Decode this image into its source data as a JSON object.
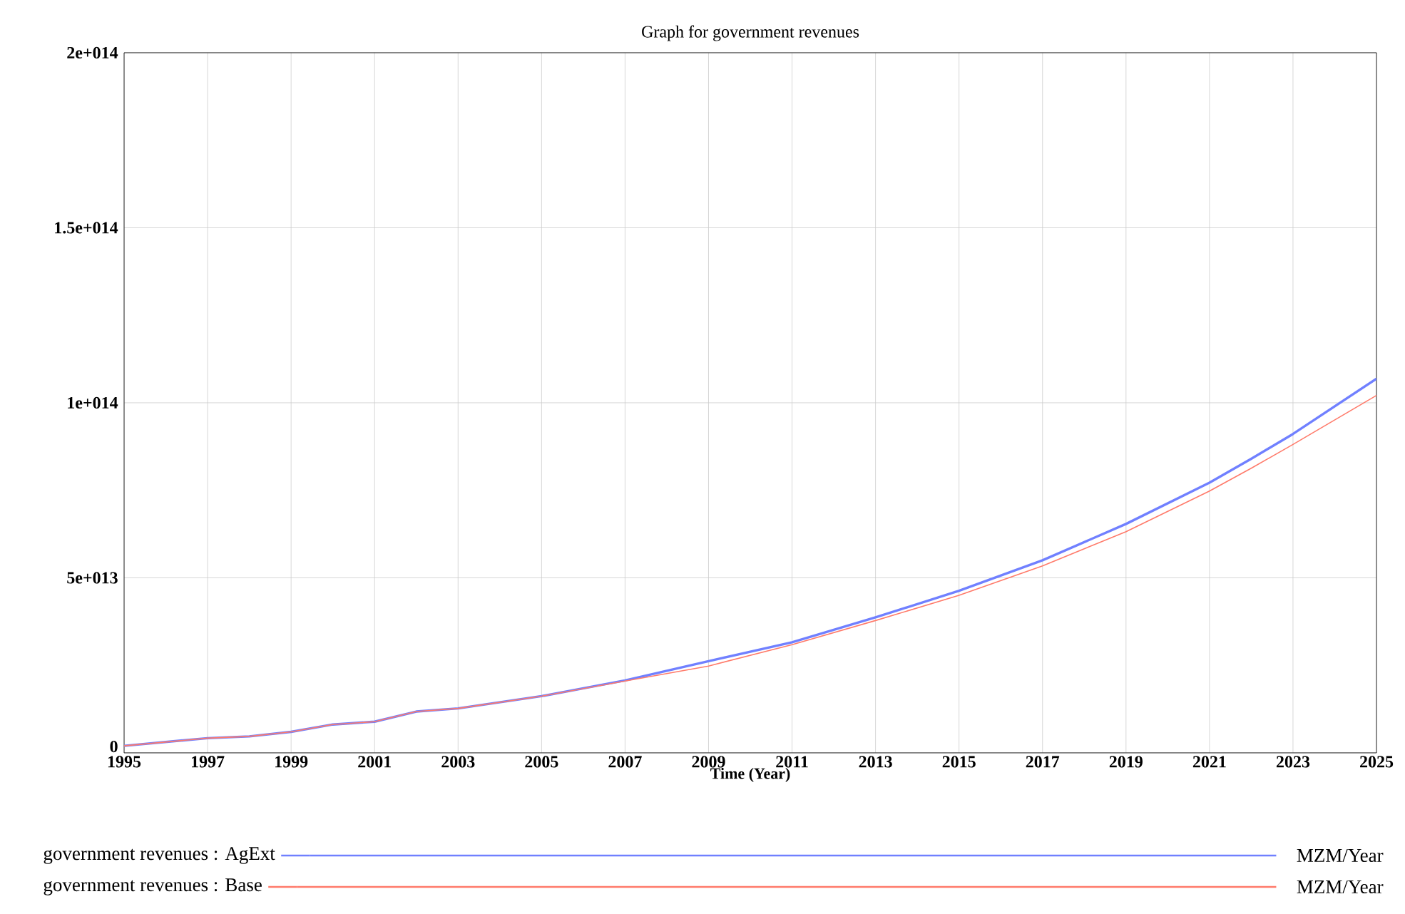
{
  "chart_data": {
    "type": "line",
    "title": "Graph for government revenues",
    "xlabel": "Time (Year)",
    "x": [
      1995,
      1997,
      1998,
      1999,
      2000,
      2001,
      2002,
      2003,
      2005,
      2007,
      2009,
      2011,
      2013,
      2015,
      2017,
      2019,
      2021,
      2022,
      2023,
      2025
    ],
    "series": [
      {
        "name": "government revenues : AgExt",
        "color": "#7080ff",
        "values": [
          2000000000000.0,
          4200000000000.0,
          4700000000000.0,
          6000000000000.0,
          8100000000000.0,
          8900000000000.0,
          11800000000000.0,
          12700000000000.0,
          16200000000000.0,
          20700000000000.0,
          26200000000000.0,
          31600000000000.0,
          38700000000000.0,
          46300000000000.0,
          55000000000000.0,
          65400000000000.0,
          77200000000000.0,
          84000000000000.0,
          91100000000000.0,
          106900000000000.0
        ]
      },
      {
        "name": "government revenues : Base",
        "color": "#ff7a6a",
        "values": [
          2000000000000.0,
          4200000000000.0,
          4700000000000.0,
          6000000000000.0,
          8100000000000.0,
          8900000000000.0,
          11800000000000.0,
          12700000000000.0,
          16200000000000.0,
          20500000000000.0,
          24800000000000.0,
          30900000000000.0,
          37800000000000.0,
          45000000000000.0,
          53400000000000.0,
          63200000000000.0,
          74800000000000.0,
          81300000000000.0,
          88100000000000.0,
          102100000000000.0
        ]
      }
    ],
    "annotations": [
      "MZM/Year",
      "MZM/Year"
    ],
    "xlim": [
      1995,
      2025
    ],
    "xticks": [
      1995,
      1997,
      1999,
      2001,
      2003,
      2005,
      2007,
      2009,
      2011,
      2013,
      2015,
      2017,
      2019,
      2021,
      2023,
      2025
    ],
    "ylim": [
      0,
      200000000000000.0
    ],
    "yticks": [
      {
        "value": 0,
        "label": "0"
      },
      {
        "value": 50000000000000.0,
        "label": "5e+013"
      },
      {
        "value": 100000000000000.0,
        "label": "1e+014"
      },
      {
        "value": 150000000000000.0,
        "label": "1.5e+014"
      },
      {
        "value": 200000000000000.0,
        "label": "2e+014"
      }
    ],
    "grid": true,
    "legend": "bottom",
    "line_style": "solid",
    "marker": "none"
  }
}
